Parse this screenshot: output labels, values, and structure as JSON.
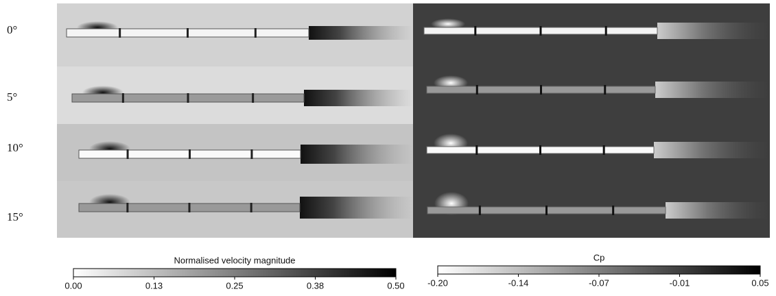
{
  "rows": [
    {
      "label": "0°"
    },
    {
      "label": "5°"
    },
    {
      "label": "10°"
    },
    {
      "label": "15°"
    }
  ],
  "colorbars": [
    {
      "title": "Normalised velocity magnitude",
      "ticks": [
        "0.00",
        "0.13",
        "0.25",
        "0.38",
        "0.50"
      ]
    },
    {
      "title": "Cp",
      "ticks": [
        "-0.20",
        "-0.14",
        "-0.07",
        "-0.01",
        "0.05"
      ]
    }
  ]
}
